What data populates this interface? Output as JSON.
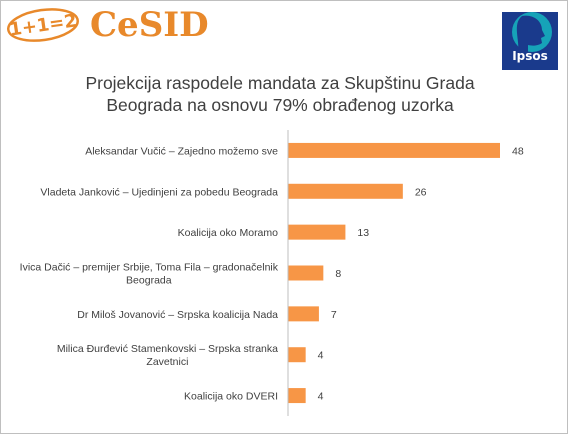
{
  "logos": {
    "left_badge": "1+1=2",
    "left_name": "CeSID",
    "right_name": "Ipsos",
    "accent_color": "#e8892b",
    "ipsos_color": "#1a3a8c"
  },
  "chart_data": {
    "type": "bar",
    "orientation": "horizontal",
    "title_line1": "Projekcija raspodele mandata za Skupštinu Grada",
    "title_line2": "Beograda na osnovu 79% obrađenog uzorka",
    "bar_color": "#f79646",
    "categories": [
      "Aleksandar Vučić – Zajedno možemo sve",
      "Vladeta Janković – Ujedinjeni za pobedu Beograda",
      "Koalicija oko Moramo",
      "Ivica Dačić – premijer Srbije, Toma Fila – gradonačelnik Beograda",
      "Dr Miloš Jovanović – Srpska koalicija Nada",
      "Milica Đurđević Stamenkovski – Srpska stranka Zavetnici",
      "Koalicija oko DVERI"
    ],
    "category_lines": [
      [
        "Aleksandar Vučić – Zajedno možemo sve"
      ],
      [
        "Vladeta Janković – Ujedinjeni za pobedu Beograda"
      ],
      [
        "Koalicija oko Moramo"
      ],
      [
        "Ivica Dačić – premijer Srbije, Toma Fila – gradonačelnik",
        "Beograda"
      ],
      [
        "Dr Miloš Jovanović – Srpska koalicija Nada"
      ],
      [
        "Milica Đurđević Stamenkovski – Srpska stranka",
        "Zavetnici"
      ],
      [
        "Koalicija oko DVERI"
      ]
    ],
    "values": [
      48,
      26,
      13,
      8,
      7,
      4,
      4
    ],
    "xlim": [
      0,
      48
    ],
    "grid": false,
    "legend": "none"
  }
}
